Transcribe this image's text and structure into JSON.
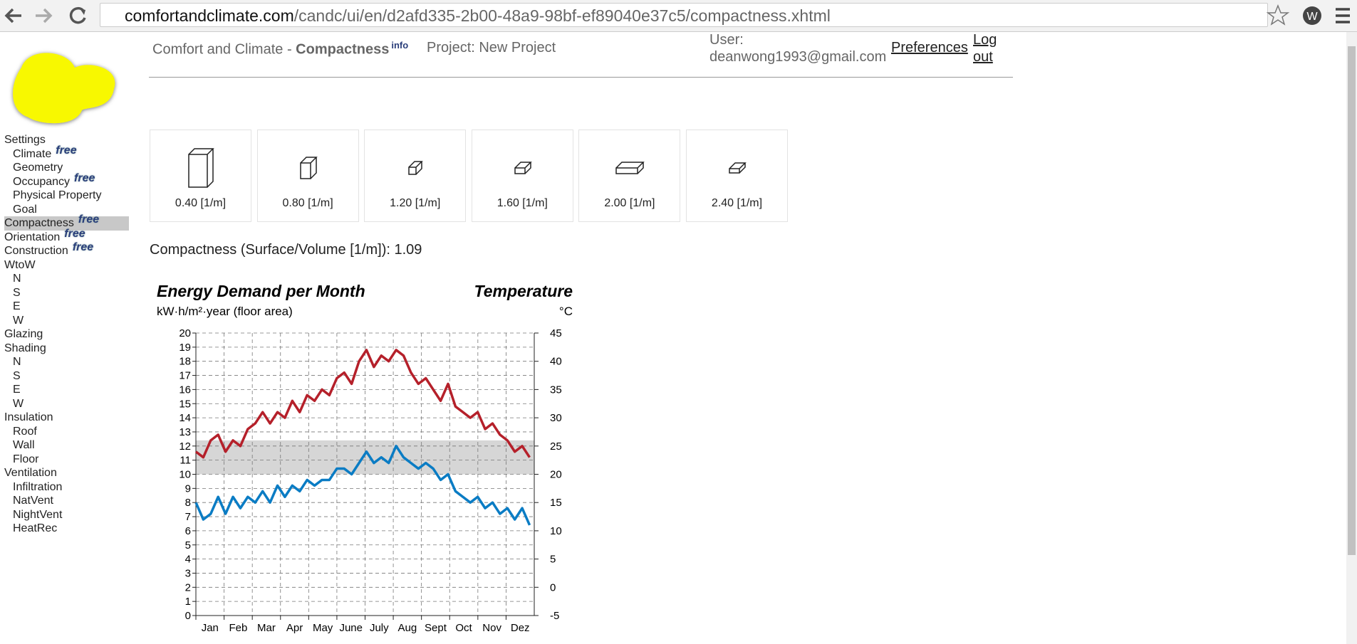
{
  "browser": {
    "url_host": "comfortandclimate.com",
    "url_path": "/candc/ui/en/d2afd335-2b00-48a9-98bf-ef89040e37c5/compactness.xhtml"
  },
  "header": {
    "app": "Comfort and Climate - ",
    "page": "Compactness",
    "info": "info",
    "project": "Project: New Project",
    "user_label": "User:",
    "user": "deanwong1993@gmail.com",
    "preferences": "Preferences",
    "logout": "Log out"
  },
  "nav": [
    {
      "label": "Settings",
      "children": [
        {
          "label": "Climate",
          "badge": "free"
        },
        {
          "label": "Geometry"
        },
        {
          "label": "Occupancy",
          "badge": "free"
        },
        {
          "label": "Physical Property"
        },
        {
          "label": "Goal"
        }
      ]
    },
    {
      "label": "Compactness",
      "badge": "free",
      "active": true
    },
    {
      "label": "Orientation",
      "badge": "free"
    },
    {
      "label": "Construction",
      "badge": "free"
    },
    {
      "label": "WtoW",
      "children": [
        {
          "label": "N"
        },
        {
          "label": "S"
        },
        {
          "label": "E"
        },
        {
          "label": "W"
        }
      ]
    },
    {
      "label": "Glazing"
    },
    {
      "label": "Shading",
      "children": [
        {
          "label": "N"
        },
        {
          "label": "S"
        },
        {
          "label": "E"
        },
        {
          "label": "W"
        }
      ]
    },
    {
      "label": "Insulation",
      "children": [
        {
          "label": "Roof"
        },
        {
          "label": "Wall"
        },
        {
          "label": "Floor"
        }
      ]
    },
    {
      "label": "Ventilation",
      "children": [
        {
          "label": "Infiltration"
        },
        {
          "label": "NatVent"
        },
        {
          "label": "NightVent"
        },
        {
          "label": "HeatRec"
        }
      ]
    }
  ],
  "options": [
    "0.40 [1/m]",
    "0.80 [1/m]",
    "1.20 [1/m]",
    "1.60 [1/m]",
    "2.00 [1/m]",
    "2.40 [1/m]"
  ],
  "compactness": {
    "label": "Compactness (Surface/Volume [1/m]):",
    "value": 1.09
  },
  "chart_data": {
    "type": "line",
    "title": "Energy Demand per Month",
    "y_label": "kW·h/m²·year (floor area)",
    "y2_title": "Temperature",
    "y2_label": "°C",
    "categories": [
      "Jan",
      "Feb",
      "Mar",
      "Apr",
      "May",
      "June",
      "July",
      "Aug",
      "Sept",
      "Oct",
      "Nov",
      "Dez"
    ],
    "xlim": [
      0,
      365
    ],
    "x": [
      0,
      8,
      16,
      24,
      32,
      40,
      48,
      56,
      64,
      72,
      80,
      88,
      96,
      104,
      112,
      120,
      128,
      136,
      144,
      152,
      160,
      168,
      176,
      184,
      192,
      200,
      208,
      216,
      224,
      232,
      240,
      248,
      256,
      264,
      272,
      280,
      288,
      296,
      304,
      312,
      320,
      328,
      336,
      344,
      352,
      360
    ],
    "ylim": [
      0,
      20
    ],
    "yticks": [
      0,
      1,
      2,
      3,
      4,
      5,
      6,
      7,
      8,
      9,
      10,
      11,
      12,
      13,
      14,
      15,
      16,
      17,
      18,
      19,
      20
    ],
    "y2lim": [
      -5,
      45
    ],
    "y2ticks": [
      -5,
      0,
      5,
      10,
      15,
      20,
      25,
      30,
      35,
      40,
      45
    ],
    "comfort_band": [
      20,
      26
    ],
    "grid": true,
    "series": [
      {
        "color": "#b5202a",
        "axis": "y2",
        "values": [
          24,
          23,
          26,
          27,
          24,
          26,
          25,
          28,
          29,
          31,
          29,
          31,
          30,
          33,
          31,
          34,
          33,
          35,
          34,
          37,
          38,
          36,
          40,
          42,
          39,
          41,
          40,
          42,
          41,
          38,
          36,
          37,
          35,
          33,
          36,
          32,
          31,
          30,
          31,
          28,
          29,
          27,
          26,
          24,
          25,
          23
        ]
      },
      {
        "color": "#0a7cc4",
        "axis": "y2",
        "values": [
          15,
          12,
          13,
          16,
          13,
          16,
          14,
          16,
          15,
          17,
          15,
          18,
          16,
          18,
          17,
          19,
          18,
          19,
          19,
          21,
          21,
          20,
          22,
          24,
          22,
          23,
          22,
          25,
          23,
          22,
          21,
          22,
          21,
          19,
          20,
          17,
          16,
          15,
          16,
          14,
          15,
          13,
          14,
          12,
          14,
          11
        ]
      }
    ]
  }
}
